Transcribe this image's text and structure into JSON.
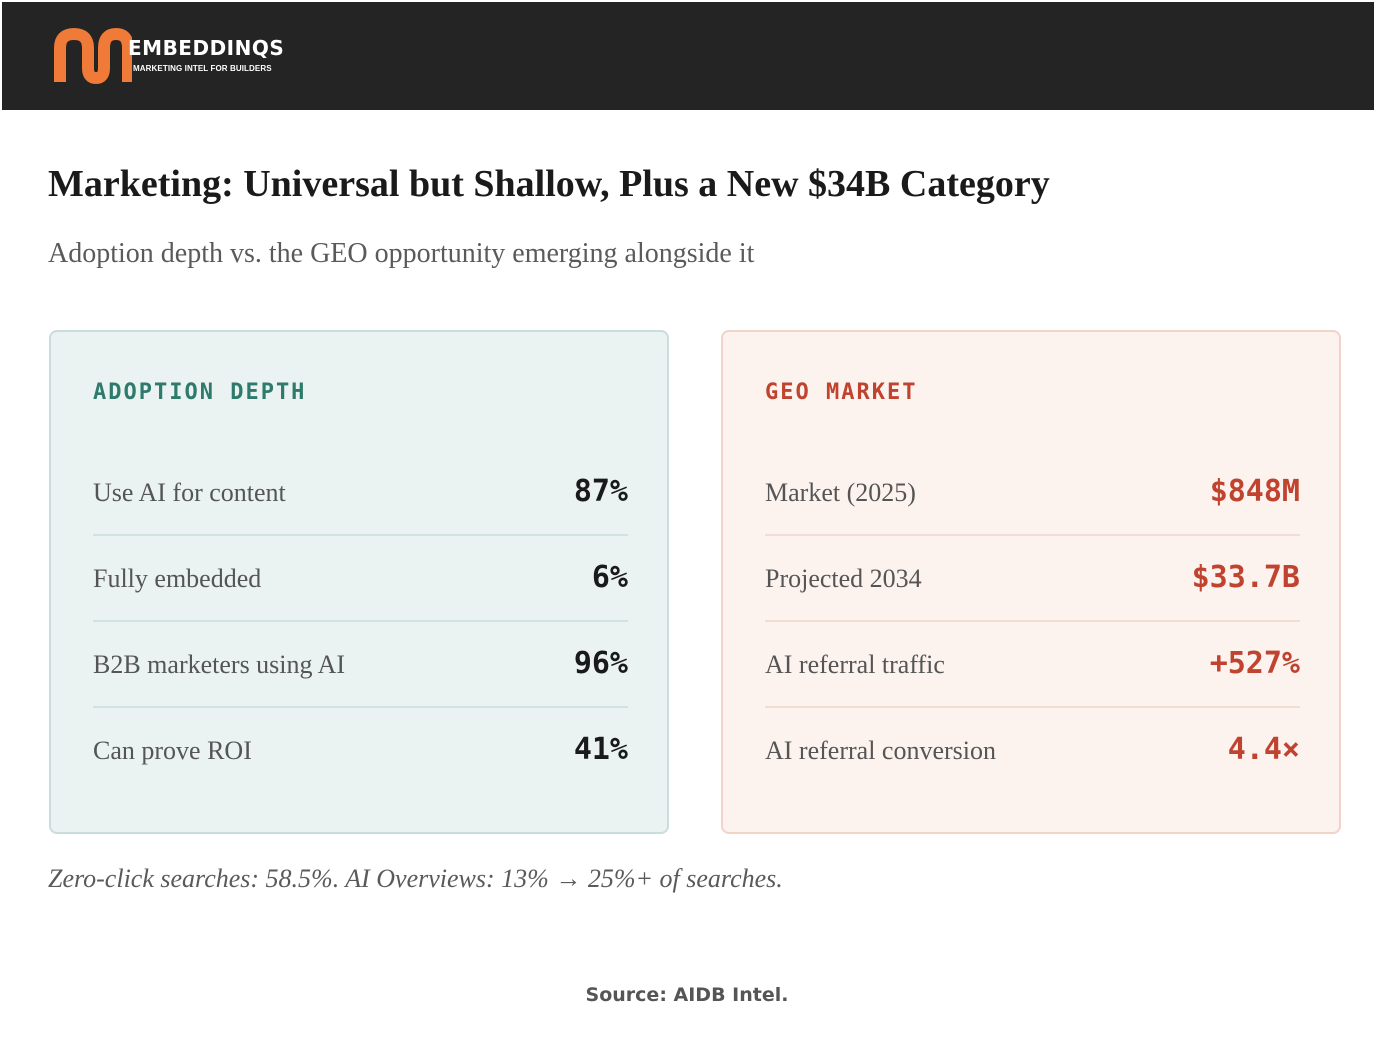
{
  "header": {
    "logo_name": "EMBEDDINQS",
    "logo_tagline": "MARKETING INTEL FOR BUILDERS",
    "logo_colors": {
      "mark": "#f07b38",
      "background": "#242424"
    }
  },
  "title": "Marketing: Universal but Shallow, Plus a New $34B Category",
  "subtitle": "Adoption depth vs. the GEO opportunity emerging alongside it",
  "panels": [
    {
      "heading": "ADOPTION DEPTH",
      "accent": "#2e7a6c",
      "rows": [
        {
          "label": "Use AI for content",
          "value": "87%"
        },
        {
          "label": "Fully embedded",
          "value": "6%"
        },
        {
          "label": "B2B marketers using AI",
          "value": "96%"
        },
        {
          "label": "Can prove ROI",
          "value": "41%"
        }
      ]
    },
    {
      "heading": "GEO MARKET",
      "accent": "#c0432f",
      "rows": [
        {
          "label": "Market (2025)",
          "value": "$848M"
        },
        {
          "label": "Projected 2034",
          "value": "$33.7B"
        },
        {
          "label": "AI referral traffic",
          "value": "+527%"
        },
        {
          "label": "AI referral conversion",
          "value": "4.4×"
        }
      ]
    }
  ],
  "note": "Zero-click searches: 58.5%. AI Overviews: 13% → 25%+ of searches.",
  "source": "Source: AIDB Intel."
}
